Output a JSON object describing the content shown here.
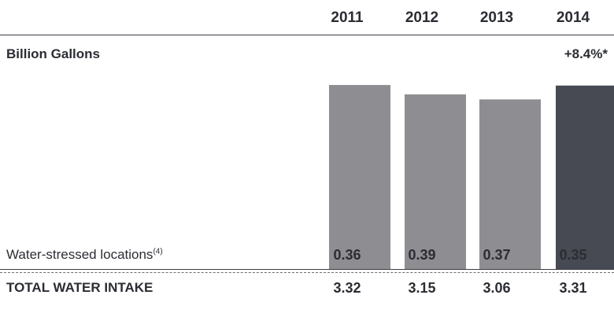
{
  "unit_label": "Billion Gallons",
  "change_label": "+8.4%*",
  "rows": {
    "water_stressed": {
      "label": "Water-stressed locations",
      "footnote": "(4)",
      "values": [
        "0.36",
        "0.39",
        "0.37",
        "0.35"
      ]
    },
    "total": {
      "label": "TOTAL WATER INTAKE",
      "values": [
        "3.32",
        "3.15",
        "3.06",
        "3.31"
      ]
    }
  },
  "colors": {
    "bar": "#8e8e92",
    "highlight_bar": "#474a52",
    "text": "#2b2d33"
  },
  "chart_data": {
    "type": "bar",
    "categories": [
      "2011",
      "2012",
      "2013",
      "2014"
    ],
    "values": [
      3.32,
      3.15,
      3.06,
      3.31
    ],
    "highlight_index": 3,
    "ylim": [
      0,
      3.42
    ],
    "grid": false,
    "legend": "none"
  }
}
